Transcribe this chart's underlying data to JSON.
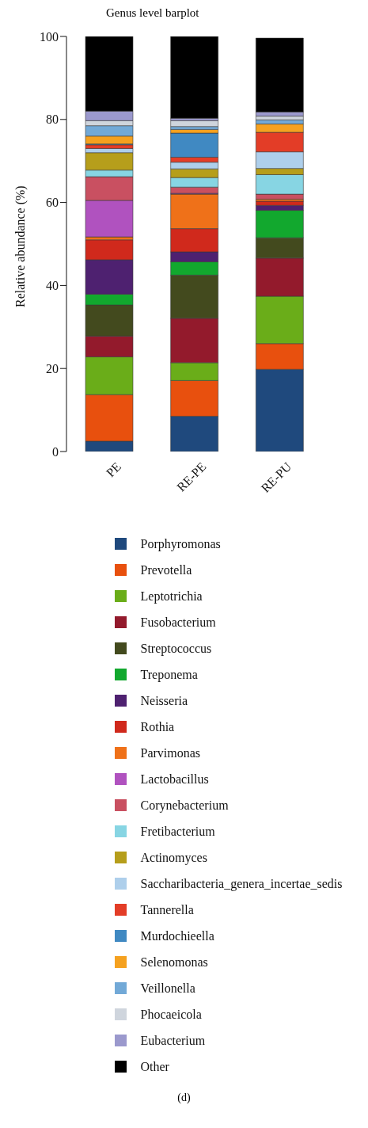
{
  "chart_data": {
    "type": "bar",
    "stacked": true,
    "title": "Genus level barplot",
    "ylabel": "Relative abundance (%)",
    "categories": [
      "PE",
      "RE-PE",
      "RE-PU"
    ],
    "ylim": [
      0,
      100
    ],
    "yticks": [
      0,
      20,
      40,
      60,
      80,
      100
    ],
    "grid": false,
    "legend": "bottom",
    "annotations": [
      "(d)"
    ],
    "series": [
      {
        "name": "Porphyromonas",
        "color": "#1f497d",
        "values": [
          2.5,
          8.5,
          19.8
        ]
      },
      {
        "name": "Prevotella",
        "color": "#e8500e",
        "values": [
          11.2,
          8.6,
          6.2
        ]
      },
      {
        "name": "Leptotrichia",
        "color": "#6aad19",
        "values": [
          9.1,
          4.3,
          11.4
        ]
      },
      {
        "name": "Fusobacterium",
        "color": "#931a2c",
        "values": [
          5.0,
          10.7,
          9.2
        ]
      },
      {
        "name": "Streptococcus",
        "color": "#434a1e",
        "values": [
          7.5,
          10.4,
          4.9
        ]
      },
      {
        "name": "Treponema",
        "color": "#12a82e",
        "values": [
          2.6,
          3.2,
          6.6
        ]
      },
      {
        "name": "Neisseria",
        "color": "#4e2170",
        "values": [
          8.3,
          2.4,
          1.2
        ]
      },
      {
        "name": "Rothia",
        "color": "#d0291c",
        "values": [
          4.8,
          5.6,
          1.0
        ]
      },
      {
        "name": "Parvimonas",
        "color": "#ef7119",
        "values": [
          0.7,
          8.3,
          0.5
        ]
      },
      {
        "name": "Lactobacillus",
        "color": "#b052bf",
        "values": [
          8.8,
          0.2,
          null
        ]
      },
      {
        "name": "Corynebacterium",
        "color": "#c95061",
        "values": [
          5.7,
          1.5,
          1.2
        ]
      },
      {
        "name": "Fretibacterium",
        "color": "#87d5e3",
        "values": [
          1.6,
          2.3,
          4.7
        ]
      },
      {
        "name": "Actinomyces",
        "color": "#b69e1b",
        "values": [
          4.2,
          2.1,
          1.5
        ]
      },
      {
        "name": "Saccharibacteria_genera_incertae_sedis",
        "color": "#aecfeb",
        "values": [
          1.0,
          1.6,
          4.0
        ]
      },
      {
        "name": "Tannerella",
        "color": "#e33d27",
        "values": [
          0.9,
          1.2,
          4.7
        ]
      },
      {
        "name": "Murdochieella",
        "color": "#4089c2",
        "values": [
          0.2,
          5.8,
          null
        ]
      },
      {
        "name": "Selenomonas",
        "color": "#f5a11f",
        "values": [
          1.9,
          0.9,
          2.0
        ]
      },
      {
        "name": "Veillonella",
        "color": "#72a9d7",
        "values": [
          2.5,
          0.7,
          1.0
        ]
      },
      {
        "name": "Phocaeicola",
        "color": "#cfd5dd",
        "values": [
          1.2,
          1.4,
          0.9
        ]
      },
      {
        "name": "Eubacterium",
        "color": "#9b99cd",
        "values": [
          2.3,
          0.6,
          1.0
        ]
      },
      {
        "name": "Other",
        "color": "#000000",
        "values": [
          18.0,
          19.7,
          17.8
        ]
      }
    ]
  }
}
